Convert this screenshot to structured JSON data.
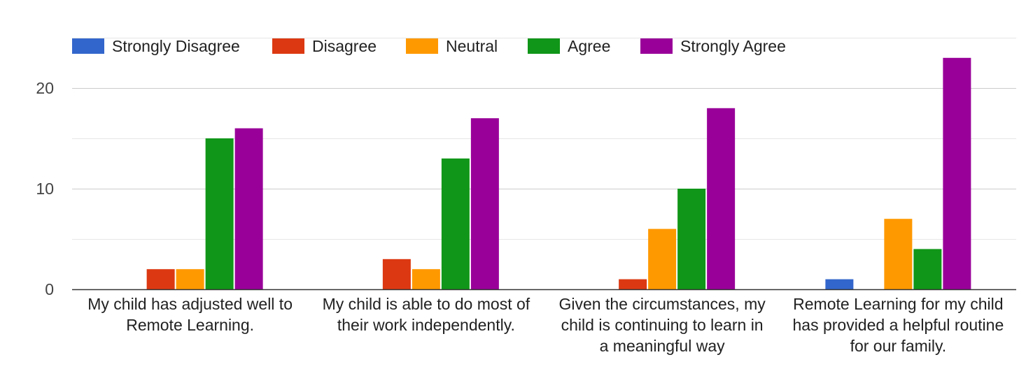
{
  "chart_data": {
    "type": "bar",
    "title": "",
    "xlabel": "",
    "ylabel": "",
    "ylim": [
      0,
      25
    ],
    "yticks": [
      0,
      10,
      20
    ],
    "grid": true,
    "legend_position": "top-left",
    "categories": [
      [
        "My child has adjusted well to",
        "Remote Learning."
      ],
      [
        "My child is able to do most of",
        "their work independently."
      ],
      [
        "Given the circumstances, my",
        "child is continuing to learn in",
        "a meaningful way"
      ],
      [
        "Remote Learning for my child",
        "has provided a helpful routine",
        "for our family."
      ]
    ],
    "series": [
      {
        "name": "Strongly Disagree",
        "color": "#3366cc",
        "values": [
          0,
          0,
          0,
          1
        ]
      },
      {
        "name": "Disagree",
        "color": "#dc3912",
        "values": [
          2,
          3,
          1,
          0
        ]
      },
      {
        "name": "Neutral",
        "color": "#ff9900",
        "values": [
          2,
          2,
          6,
          7
        ]
      },
      {
        "name": "Agree",
        "color": "#109618",
        "values": [
          15,
          13,
          10,
          4
        ]
      },
      {
        "name": "Strongly Agree",
        "color": "#990099",
        "values": [
          16,
          17,
          18,
          23
        ]
      }
    ]
  }
}
